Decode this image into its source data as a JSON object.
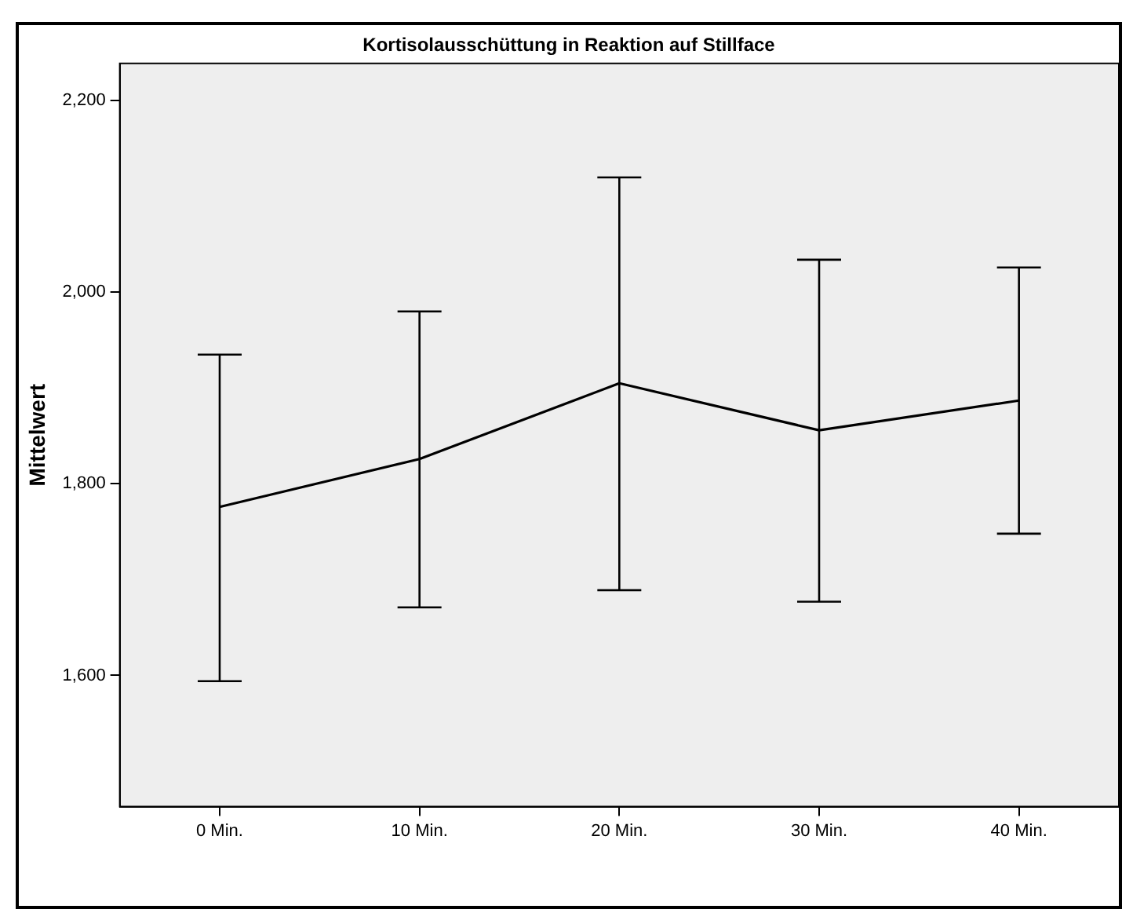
{
  "chart_data": {
    "type": "line",
    "title": "Kortisolausschüttung in Reaktion auf Stillface",
    "ylabel": "Mittelwert",
    "categories": [
      "0 Min.",
      "10 Min.",
      "20 Min.",
      "30 Min.",
      "40 Min."
    ],
    "values": [
      1776,
      1826,
      1905,
      1856,
      1887
    ],
    "errors": [
      [
        1594,
        1935
      ],
      [
        1671,
        1980
      ],
      [
        1689,
        2120
      ],
      [
        1677,
        2034
      ],
      [
        1748,
        2026
      ]
    ],
    "color": "#000000",
    "marker": "none",
    "line_style": "solid",
    "grid": false,
    "legend": false,
    "ylim": [
      1463,
      2239
    ],
    "yticks": [
      {
        "value": 1600,
        "label": "1,600"
      },
      {
        "value": 1800,
        "label": "1,800"
      },
      {
        "value": 2000,
        "label": "2,000"
      },
      {
        "value": 2200,
        "label": "2,200"
      }
    ]
  }
}
